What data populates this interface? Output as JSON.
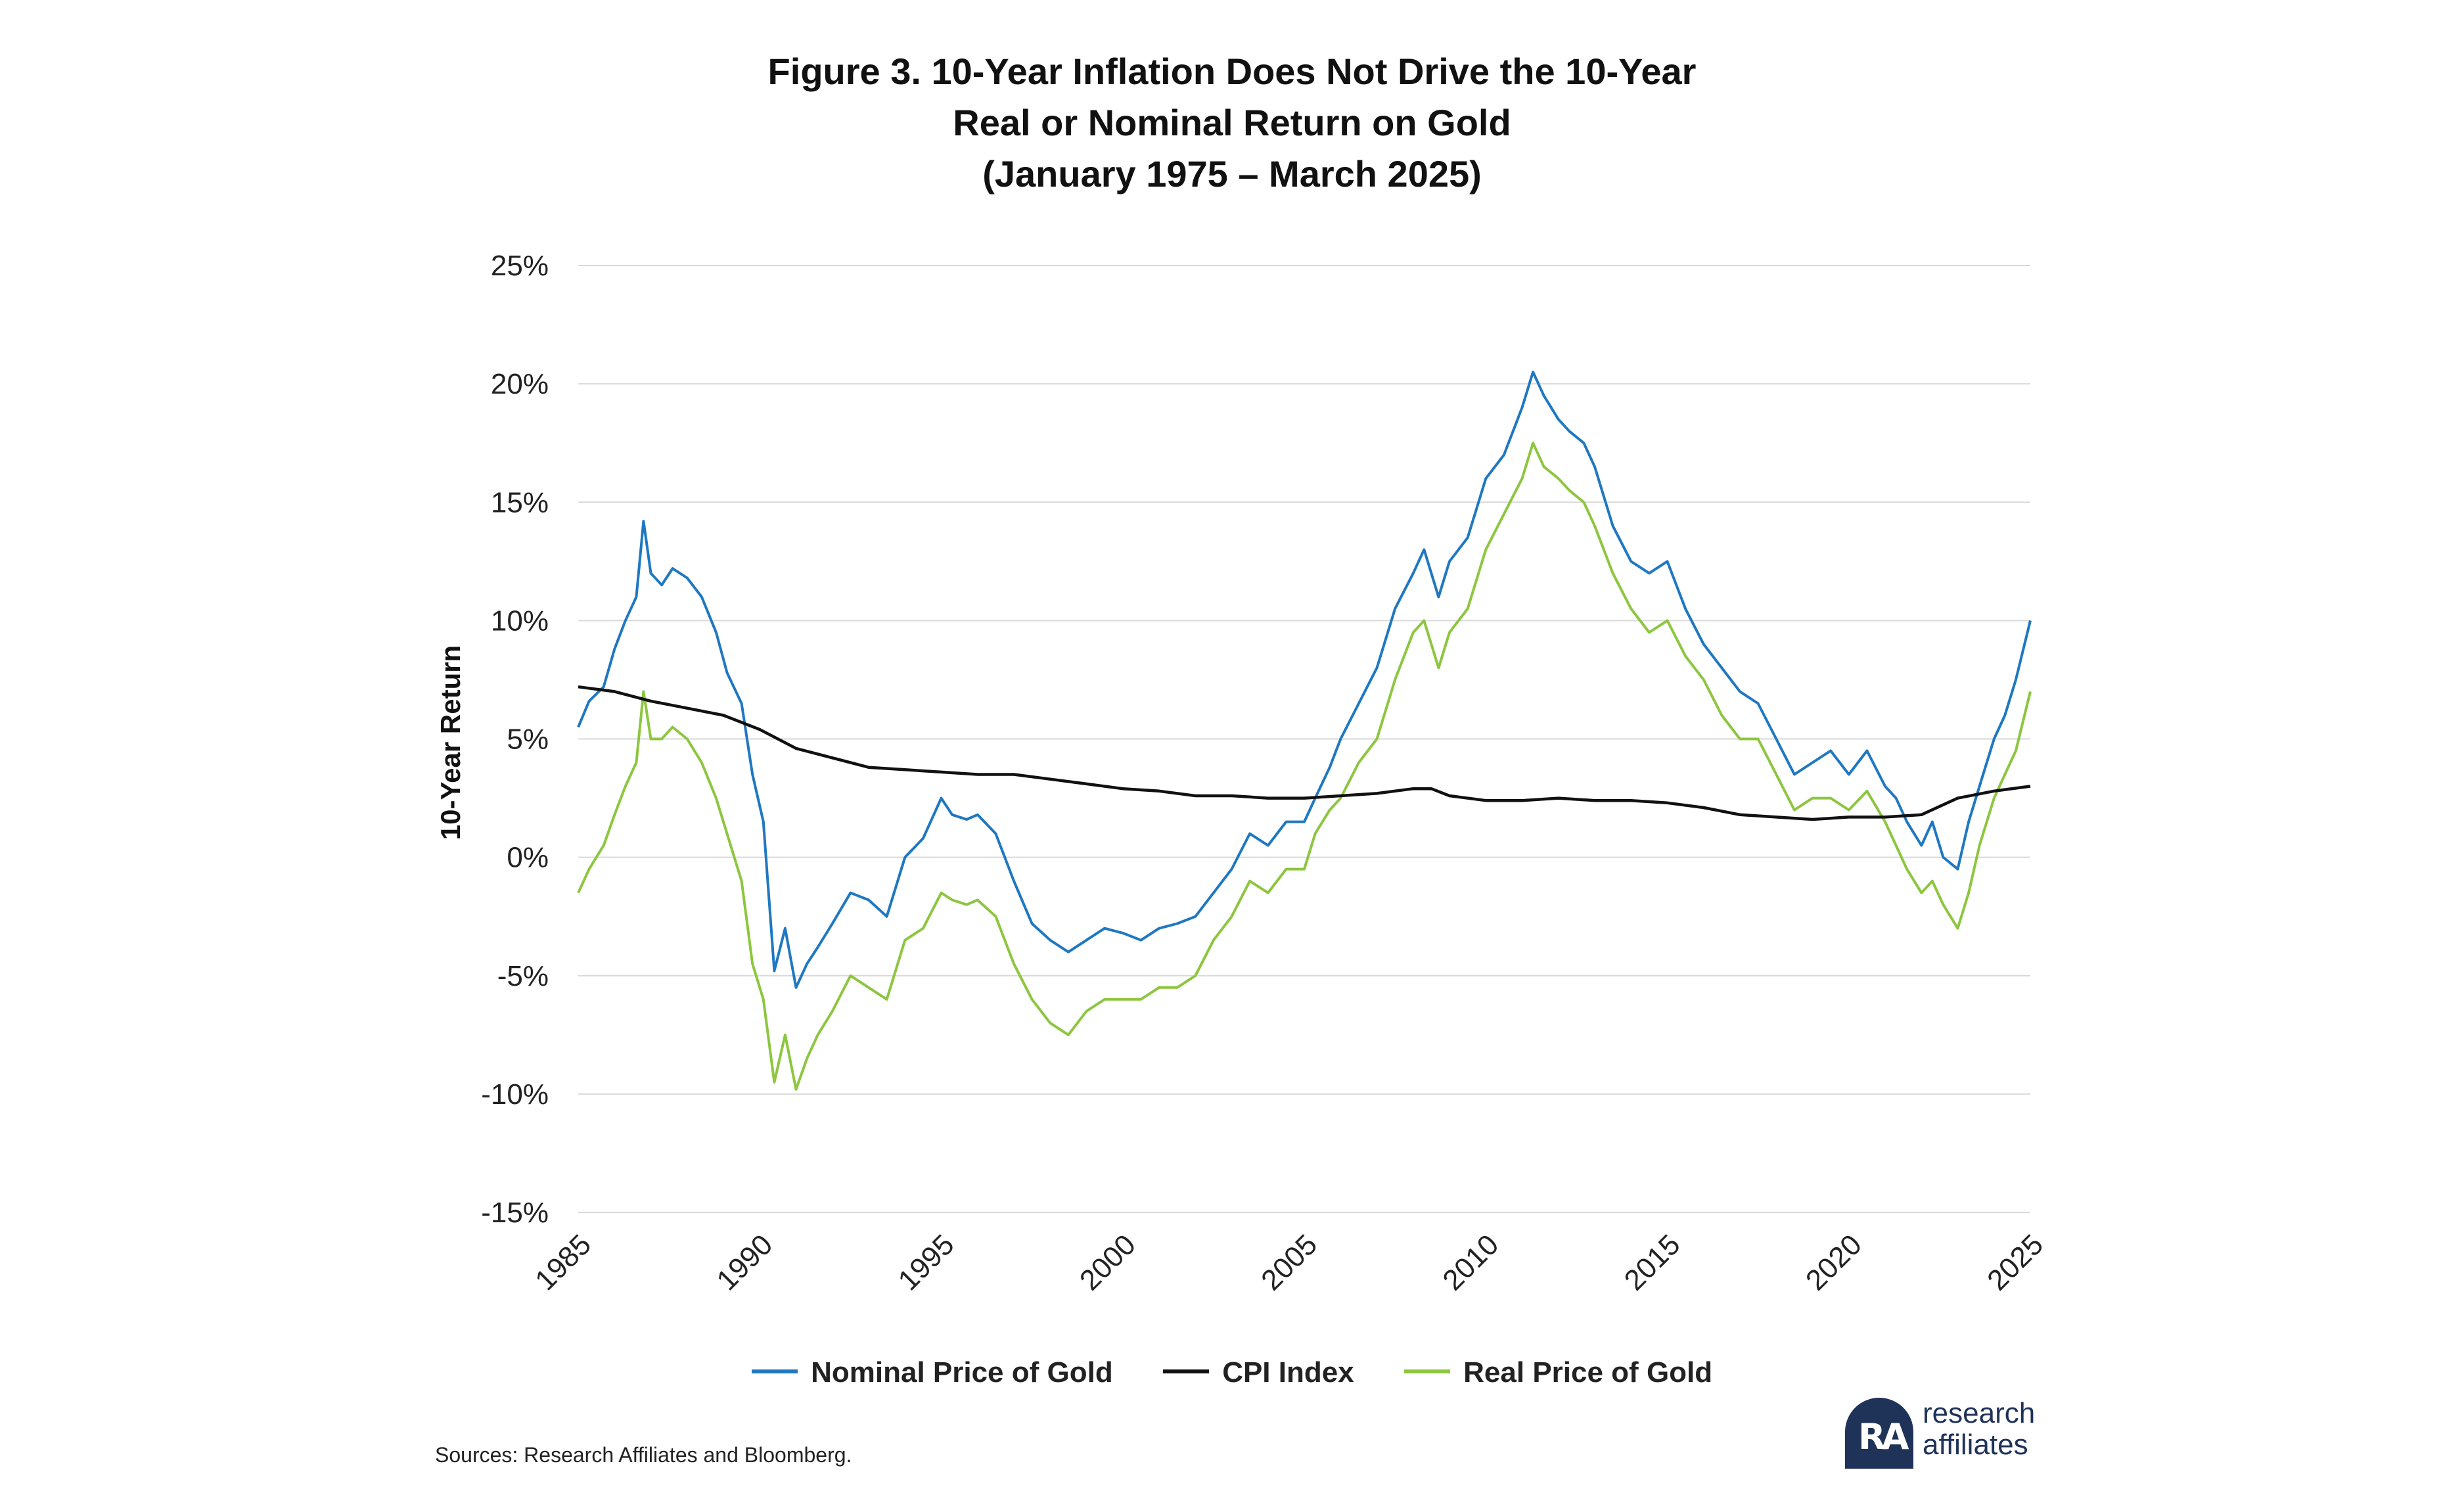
{
  "title": {
    "line1": "Figure 3. 10-Year Inflation Does Not Drive the 10-Year",
    "line2": "Real or Nominal Return on Gold",
    "line3": "(January 1975 – March 2025)"
  },
  "sources": "Sources: Research Affiliates and Bloomberg.",
  "logo": {
    "line1": "research",
    "line2": "affiliates",
    "mark": "RA"
  },
  "chart_data": {
    "type": "line",
    "title": "Figure 3. 10-Year Inflation Does Not Drive the 10-Year Real or Nominal Return on Gold (January 1975 – March 2025)",
    "xlabel": "",
    "ylabel": "10-Year Return",
    "xlim": [
      1985,
      2025
    ],
    "ylim": [
      -15,
      25
    ],
    "y_unit": "%",
    "x_ticks": [
      1985,
      1990,
      1995,
      2000,
      2005,
      2010,
      2015,
      2020,
      2025
    ],
    "y_ticks": [
      -15,
      -10,
      -5,
      0,
      5,
      10,
      15,
      20,
      25
    ],
    "x_tick_labels": [
      "1985",
      "1990",
      "1995",
      "2000",
      "2005",
      "2010",
      "2015",
      "2020",
      "2025"
    ],
    "y_tick_labels": [
      "-15%",
      "-10%",
      "-5%",
      "0%",
      "5%",
      "10%",
      "15%",
      "20%",
      "25%"
    ],
    "grid": true,
    "legend_position": "bottom",
    "series": [
      {
        "name": "Nominal Price of Gold",
        "color": "#1f78c1",
        "x": [
          1985,
          1985.3,
          1985.7,
          1986,
          1986.3,
          1986.6,
          1986.8,
          1987,
          1987.3,
          1987.6,
          1988,
          1988.4,
          1988.8,
          1989.1,
          1989.5,
          1989.8,
          1990.1,
          1990.4,
          1990.7,
          1991,
          1991.3,
          1991.6,
          1992,
          1992.5,
          1993,
          1993.5,
          1994,
          1994.5,
          1995,
          1995.3,
          1995.7,
          1996,
          1996.5,
          1997,
          1997.5,
          1998,
          1998.5,
          1999,
          1999.5,
          2000,
          2000.5,
          2001,
          2001.5,
          2002,
          2002.5,
          2003,
          2003.5,
          2004,
          2004.5,
          2005,
          2005.3,
          2005.7,
          2006,
          2006.5,
          2007,
          2007.5,
          2008,
          2008.3,
          2008.7,
          2009,
          2009.5,
          2010,
          2010.5,
          2011,
          2011.3,
          2011.6,
          2012,
          2012.3,
          2012.7,
          2013,
          2013.5,
          2014,
          2014.5,
          2015,
          2015.5,
          2016,
          2016.5,
          2017,
          2017.5,
          2018,
          2018.5,
          2019,
          2019.5,
          2020,
          2020.5,
          2021,
          2021.3,
          2021.6,
          2022,
          2022.3,
          2022.6,
          2023,
          2023.3,
          2023.6,
          2024,
          2024.3,
          2024.6,
          2025
        ],
        "values": [
          5.5,
          6.6,
          7.2,
          8.8,
          10.0,
          11.0,
          14.2,
          12.0,
          11.5,
          12.2,
          11.8,
          11.0,
          9.5,
          7.8,
          6.5,
          3.5,
          1.5,
          -4.8,
          -3.0,
          -5.5,
          -4.5,
          -3.8,
          -2.8,
          -1.5,
          -1.8,
          -2.5,
          0.0,
          0.8,
          2.5,
          1.8,
          1.6,
          1.8,
          1.0,
          -1.0,
          -2.8,
          -3.5,
          -4.0,
          -3.5,
          -3.0,
          -3.2,
          -3.5,
          -3.0,
          -2.8,
          -2.5,
          -1.5,
          -0.5,
          1.0,
          0.5,
          1.5,
          1.5,
          2.5,
          3.8,
          5.0,
          6.5,
          8.0,
          10.5,
          12.0,
          13.0,
          11.0,
          12.5,
          13.5,
          16.0,
          17.0,
          19.0,
          20.5,
          19.5,
          18.5,
          18.0,
          17.5,
          16.5,
          14.0,
          12.5,
          12.0,
          12.5,
          10.5,
          9.0,
          8.0,
          7.0,
          6.5,
          5.0,
          3.5,
          4.0,
          4.5,
          3.5,
          4.5,
          3.0,
          2.5,
          1.5,
          0.5,
          1.5,
          0.0,
          -0.5,
          1.5,
          3.0,
          5.0,
          6.0,
          7.5,
          10.0
        ]
      },
      {
        "name": "CPI Index",
        "color": "#111111",
        "x": [
          1985,
          1986,
          1987,
          1988,
          1989,
          1990,
          1991,
          1992,
          1993,
          1994,
          1995,
          1996,
          1997,
          1998,
          1999,
          2000,
          2001,
          2002,
          2003,
          2004,
          2005,
          2006,
          2007,
          2008,
          2008.5,
          2009,
          2010,
          2011,
          2012,
          2013,
          2014,
          2015,
          2016,
          2017,
          2018,
          2019,
          2020,
          2021,
          2022,
          2023,
          2024,
          2025
        ],
        "values": [
          7.2,
          7.0,
          6.6,
          6.3,
          6.0,
          5.4,
          4.6,
          4.2,
          3.8,
          3.7,
          3.6,
          3.5,
          3.5,
          3.3,
          3.1,
          2.9,
          2.8,
          2.6,
          2.6,
          2.5,
          2.5,
          2.6,
          2.7,
          2.9,
          2.9,
          2.6,
          2.4,
          2.4,
          2.5,
          2.4,
          2.4,
          2.3,
          2.1,
          1.8,
          1.7,
          1.6,
          1.7,
          1.7,
          1.8,
          2.5,
          2.8,
          3.0
        ]
      },
      {
        "name": "Real Price of Gold",
        "color": "#8dc63f",
        "x": [
          1985,
          1985.3,
          1985.7,
          1986,
          1986.3,
          1986.6,
          1986.8,
          1987,
          1987.3,
          1987.6,
          1988,
          1988.4,
          1988.8,
          1989.1,
          1989.5,
          1989.8,
          1990.1,
          1990.4,
          1990.7,
          1991,
          1991.3,
          1991.6,
          1992,
          1992.5,
          1993,
          1993.5,
          1994,
          1994.5,
          1995,
          1995.3,
          1995.7,
          1996,
          1996.5,
          1997,
          1997.5,
          1998,
          1998.5,
          1999,
          1999.5,
          2000,
          2000.5,
          2001,
          2001.5,
          2002,
          2002.5,
          2003,
          2003.5,
          2004,
          2004.5,
          2005,
          2005.3,
          2005.7,
          2006,
          2006.5,
          2007,
          2007.5,
          2008,
          2008.3,
          2008.7,
          2009,
          2009.5,
          2010,
          2010.5,
          2011,
          2011.3,
          2011.6,
          2012,
          2012.3,
          2012.7,
          2013,
          2013.5,
          2014,
          2014.5,
          2015,
          2015.5,
          2016,
          2016.5,
          2017,
          2017.5,
          2018,
          2018.5,
          2019,
          2019.5,
          2020,
          2020.5,
          2021,
          2021.3,
          2021.6,
          2022,
          2022.3,
          2022.6,
          2023,
          2023.3,
          2023.6,
          2024,
          2024.3,
          2024.6,
          2025
        ],
        "values": [
          -1.5,
          -0.5,
          0.5,
          1.8,
          3.0,
          4.0,
          7.0,
          5.0,
          5.0,
          5.5,
          5.0,
          4.0,
          2.5,
          1.0,
          -1.0,
          -4.5,
          -6.0,
          -9.5,
          -7.5,
          -9.8,
          -8.5,
          -7.5,
          -6.5,
          -5.0,
          -5.5,
          -6.0,
          -3.5,
          -3.0,
          -1.5,
          -1.8,
          -2.0,
          -1.8,
          -2.5,
          -4.5,
          -6.0,
          -7.0,
          -7.5,
          -6.5,
          -6.0,
          -6.0,
          -6.0,
          -5.5,
          -5.5,
          -5.0,
          -3.5,
          -2.5,
          -1.0,
          -1.5,
          -0.5,
          -0.5,
          1.0,
          2.0,
          2.5,
          4.0,
          5.0,
          7.5,
          9.5,
          10.0,
          8.0,
          9.5,
          10.5,
          13.0,
          14.5,
          16.0,
          17.5,
          16.5,
          16.0,
          15.5,
          15.0,
          14.0,
          12.0,
          10.5,
          9.5,
          10.0,
          8.5,
          7.5,
          6.0,
          5.0,
          5.0,
          3.5,
          2.0,
          2.5,
          2.5,
          2.0,
          2.8,
          1.5,
          0.5,
          -0.5,
          -1.5,
          -1.0,
          -2.0,
          -3.0,
          -1.5,
          0.5,
          2.5,
          3.5,
          4.5,
          7.0
        ]
      }
    ]
  }
}
